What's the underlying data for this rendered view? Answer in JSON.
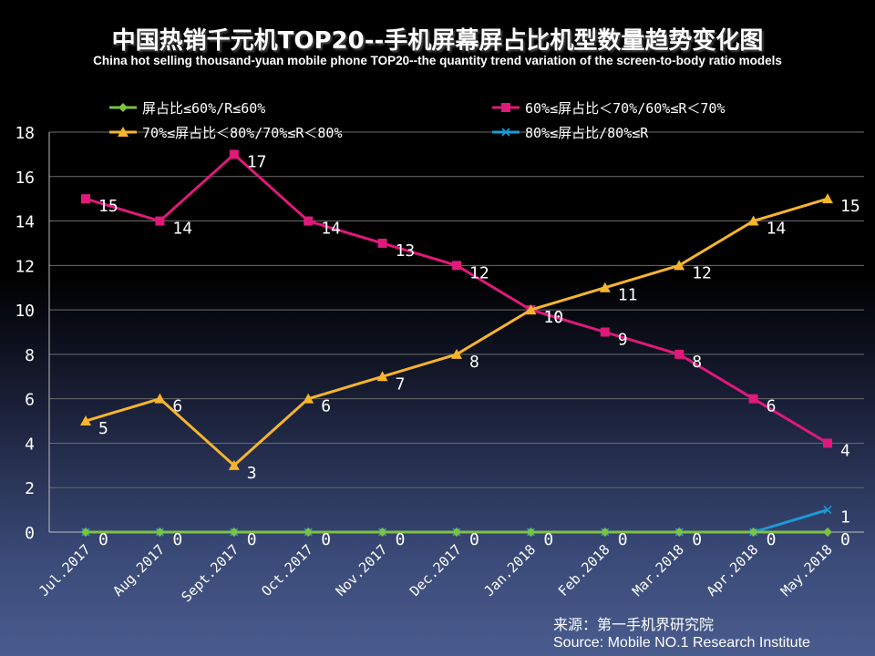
{
  "title": "中国热销千元机TOP20--手机屏幕屏占比机型数量趋势变化图",
  "subtitle": "China hot selling thousand-yuan mobile phone TOP20--the quantity trend variation of the screen-to-body ratio models",
  "source": {
    "line1": "来源：第一手机界研究院",
    "line2": "Source: Mobile NO.1 Research Institute"
  },
  "chart_data": {
    "type": "line",
    "categories": [
      "Jul.2017",
      "Aug.2017",
      "Sept.2017",
      "Oct.2017",
      "Nov.2017",
      "Dec.2017",
      "Jan.2018",
      "Feb.2018",
      "Mar.2018",
      "Apr.2018",
      "May.2018"
    ],
    "ylim": [
      0,
      18
    ],
    "yticks": [
      "0",
      "2",
      "4",
      "6",
      "8",
      "10",
      "12",
      "14",
      "16",
      "18"
    ],
    "xlabel": "",
    "ylabel": "",
    "grid": "horizontal",
    "legend_position": "top",
    "series": [
      {
        "name": "屏占比≤60%/R≤60%",
        "color": "#7dc242",
        "marker": "diamond",
        "values": [
          0,
          0,
          0,
          0,
          0,
          0,
          0,
          0,
          0,
          0,
          0
        ],
        "labels": [
          "0",
          "0",
          "0",
          "0",
          "0",
          "0",
          "0",
          "0",
          "0",
          "0",
          "0"
        ]
      },
      {
        "name": "60%≤屏占比＜70%/60%≤R＜70%",
        "color": "#e0197a",
        "marker": "square",
        "values": [
          15,
          14,
          17,
          14,
          13,
          12,
          10,
          9,
          8,
          6,
          4
        ],
        "labels": [
          "15",
          "14",
          "17",
          "14",
          "13",
          "12",
          "10",
          "9",
          "8",
          "6",
          "4"
        ]
      },
      {
        "name": "70%≤屏占比＜80%/70%≤R＜80%",
        "color": "#f7b52c",
        "marker": "triangle",
        "values": [
          5,
          6,
          3,
          6,
          7,
          8,
          10,
          11,
          12,
          14,
          15
        ],
        "labels": [
          "5",
          "6",
          "3",
          "6",
          "7",
          "8",
          "10",
          "11",
          "12",
          "14",
          "15"
        ]
      },
      {
        "name": "80%≤屏占比/80%≤R",
        "color": "#1b9bd7",
        "marker": "x",
        "values": [
          0,
          0,
          0,
          0,
          0,
          0,
          0,
          0,
          0,
          0,
          1
        ],
        "labels": [
          "",
          "",
          "",
          "",
          "",
          "",
          "",
          "",
          "",
          "",
          "1"
        ]
      }
    ]
  }
}
